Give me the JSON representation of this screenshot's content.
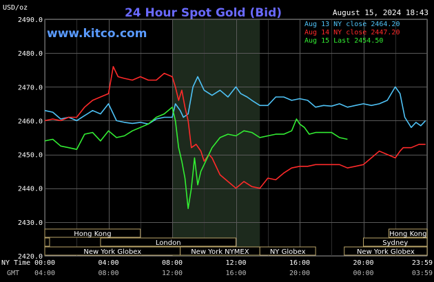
{
  "header": {
    "currency": "USD/oz",
    "title": "24 Hour Spot Gold (Bid)",
    "datetime": "August 15, 2024 18:43",
    "watermark": "www.kitco.com"
  },
  "legend": [
    {
      "label": "Aug 13 NY close 2464.20",
      "color": "#4fc3f7"
    },
    {
      "label": "Aug 14 NY close 2447.20",
      "color": "#ff2a2a"
    },
    {
      "label": "Aug 15 Last 2454.50",
      "color": "#33ee33"
    }
  ],
  "y_ticks": [
    "2490.0",
    "2480.0",
    "2470.0",
    "2460.0",
    "2450.0",
    "2440.0",
    "2430.0",
    "2420.0"
  ],
  "time_axis": {
    "ny_label": "NY Time",
    "gmt_label": "GMT",
    "ny_ticks": [
      "00:00",
      "04:00",
      "08:00",
      "12:00",
      "16:00",
      "20:00",
      "23:59"
    ],
    "gmt_ticks": [
      "04:00",
      "08:00",
      "12:00",
      "16:00",
      "20:00",
      "00:00",
      "03:59"
    ]
  },
  "sessions": [
    {
      "label": "Hong Kong",
      "row": 0,
      "start": 0,
      "end": 6
    },
    {
      "label": "Hong Kong",
      "row": 0,
      "start": 21.6,
      "end": 24
    },
    {
      "label": "London",
      "row": 1,
      "start": 3.5,
      "end": 12
    },
    {
      "label": "",
      "row": 1,
      "start": 0,
      "end": 0.3
    },
    {
      "label": "Sydney",
      "row": 1,
      "start": 20,
      "end": 24
    },
    {
      "label": "New York Globex",
      "row": 2,
      "start": 0,
      "end": 8.5
    },
    {
      "label": "New York NYMEX",
      "row": 2,
      "start": 8.5,
      "end": 13.5
    },
    {
      "label": "NY Globex",
      "row": 2,
      "start": 13.5,
      "end": 17
    },
    {
      "label": "New York Globex",
      "row": 2,
      "start": 18.8,
      "end": 24
    }
  ],
  "chart_data": {
    "type": "line",
    "title": "24 Hour Spot Gold (Bid)",
    "ylabel": "USD/oz",
    "xlabel": "NY Time",
    "ylim": [
      2420,
      2490
    ],
    "xlim": [
      0,
      24
    ],
    "shaded_region": [
      8,
      13.5
    ],
    "grid": true,
    "legend_position": "top-right",
    "series": [
      {
        "name": "Aug 13 NY close 2464.20",
        "color": "#4fc3f7",
        "points": [
          [
            0,
            2463
          ],
          [
            0.5,
            2462.5
          ],
          [
            1,
            2460.5
          ],
          [
            1.5,
            2461
          ],
          [
            2,
            2460
          ],
          [
            2.5,
            2461.5
          ],
          [
            3,
            2463
          ],
          [
            3.5,
            2462
          ],
          [
            4,
            2465
          ],
          [
            4.5,
            2460
          ],
          [
            5,
            2459.5
          ],
          [
            5.5,
            2459.2
          ],
          [
            6,
            2459.5
          ],
          [
            6.5,
            2459
          ],
          [
            7,
            2460.5
          ],
          [
            7.5,
            2461
          ],
          [
            8,
            2461
          ],
          [
            8.2,
            2465
          ],
          [
            8.5,
            2463
          ],
          [
            8.7,
            2461
          ],
          [
            9,
            2462
          ],
          [
            9.3,
            2470
          ],
          [
            9.6,
            2473
          ],
          [
            10,
            2469
          ],
          [
            10.5,
            2467.5
          ],
          [
            11,
            2469
          ],
          [
            11.5,
            2467
          ],
          [
            12,
            2470
          ],
          [
            12.3,
            2468
          ],
          [
            12.7,
            2467
          ],
          [
            13,
            2466
          ],
          [
            13.5,
            2464.5
          ],
          [
            14,
            2464.5
          ],
          [
            14.5,
            2467
          ],
          [
            15,
            2467
          ],
          [
            15.5,
            2466
          ],
          [
            16,
            2466.5
          ],
          [
            16.5,
            2466
          ],
          [
            17,
            2464
          ],
          [
            17.5,
            2464.5
          ],
          [
            18,
            2464.3
          ],
          [
            18.5,
            2465
          ],
          [
            19,
            2464
          ],
          [
            19.5,
            2464.5
          ],
          [
            20,
            2465
          ],
          [
            20.5,
            2464.5
          ],
          [
            21,
            2465
          ],
          [
            21.5,
            2466
          ],
          [
            22,
            2470
          ],
          [
            22.3,
            2468
          ],
          [
            22.6,
            2461
          ],
          [
            23,
            2458
          ],
          [
            23.3,
            2459.5
          ],
          [
            23.6,
            2458.5
          ],
          [
            23.9,
            2460
          ]
        ]
      },
      {
        "name": "Aug 14 NY close 2447.20",
        "color": "#ff2a2a",
        "points": [
          [
            0,
            2460
          ],
          [
            0.5,
            2460.5
          ],
          [
            1,
            2460
          ],
          [
            1.5,
            2461
          ],
          [
            2,
            2461
          ],
          [
            2.5,
            2464
          ],
          [
            3,
            2466
          ],
          [
            3.5,
            2467
          ],
          [
            4,
            2468
          ],
          [
            4.3,
            2476
          ],
          [
            4.6,
            2473
          ],
          [
            5,
            2472.5
          ],
          [
            5.5,
            2472
          ],
          [
            6,
            2473
          ],
          [
            6.5,
            2472
          ],
          [
            7,
            2472
          ],
          [
            7.5,
            2474
          ],
          [
            8,
            2473
          ],
          [
            8.2,
            2470
          ],
          [
            8.4,
            2466
          ],
          [
            8.6,
            2469
          ],
          [
            8.8,
            2464
          ],
          [
            9,
            2460
          ],
          [
            9.2,
            2452
          ],
          [
            9.5,
            2453
          ],
          [
            9.8,
            2451
          ],
          [
            10,
            2448
          ],
          [
            10.3,
            2450
          ],
          [
            10.5,
            2449
          ],
          [
            11,
            2444
          ],
          [
            11.5,
            2442
          ],
          [
            12,
            2440
          ],
          [
            12.5,
            2442
          ],
          [
            13,
            2440.5
          ],
          [
            13.5,
            2440
          ],
          [
            14,
            2443
          ],
          [
            14.5,
            2442.5
          ],
          [
            15,
            2444.5
          ],
          [
            15.5,
            2446
          ],
          [
            16,
            2446.5
          ],
          [
            16.5,
            2446.5
          ],
          [
            17,
            2447
          ],
          [
            17.5,
            2447
          ],
          [
            18,
            2447
          ],
          [
            18.5,
            2447
          ],
          [
            19,
            2446
          ],
          [
            19.5,
            2446.5
          ],
          [
            20,
            2447
          ],
          [
            20.5,
            2449
          ],
          [
            21,
            2451
          ],
          [
            21.5,
            2450
          ],
          [
            22,
            2449
          ],
          [
            22.3,
            2451
          ],
          [
            22.5,
            2452
          ],
          [
            23,
            2452
          ],
          [
            23.5,
            2453
          ],
          [
            23.9,
            2453
          ]
        ]
      },
      {
        "name": "Aug 15 Last 2454.50",
        "color": "#33ee33",
        "points": [
          [
            0,
            2454
          ],
          [
            0.5,
            2454.5
          ],
          [
            1,
            2452.5
          ],
          [
            1.5,
            2452
          ],
          [
            2,
            2451.5
          ],
          [
            2.5,
            2456
          ],
          [
            3,
            2456.5
          ],
          [
            3.5,
            2454
          ],
          [
            4,
            2457
          ],
          [
            4.5,
            2455
          ],
          [
            5,
            2455.5
          ],
          [
            5.5,
            2457
          ],
          [
            6,
            2458
          ],
          [
            6.5,
            2459
          ],
          [
            7,
            2461
          ],
          [
            7.5,
            2462
          ],
          [
            8,
            2464
          ],
          [
            8.2,
            2460
          ],
          [
            8.4,
            2452
          ],
          [
            8.6,
            2448
          ],
          [
            8.8,
            2443
          ],
          [
            9,
            2434
          ],
          [
            9.2,
            2440
          ],
          [
            9.4,
            2449
          ],
          [
            9.6,
            2441
          ],
          [
            9.8,
            2445
          ],
          [
            10,
            2447
          ],
          [
            10.3,
            2450
          ],
          [
            10.5,
            2452
          ],
          [
            11,
            2455
          ],
          [
            11.5,
            2456
          ],
          [
            12,
            2455.5
          ],
          [
            12.5,
            2457
          ],
          [
            13,
            2456.5
          ],
          [
            13.5,
            2455
          ],
          [
            14,
            2455.5
          ],
          [
            14.5,
            2456
          ],
          [
            15,
            2456
          ],
          [
            15.5,
            2457
          ],
          [
            15.8,
            2460.5
          ],
          [
            16,
            2459
          ],
          [
            16.3,
            2458
          ],
          [
            16.6,
            2456
          ],
          [
            17,
            2456.5
          ],
          [
            17.5,
            2456.5
          ],
          [
            18,
            2456.5
          ],
          [
            18.5,
            2455
          ],
          [
            19,
            2454.5
          ]
        ]
      }
    ]
  }
}
